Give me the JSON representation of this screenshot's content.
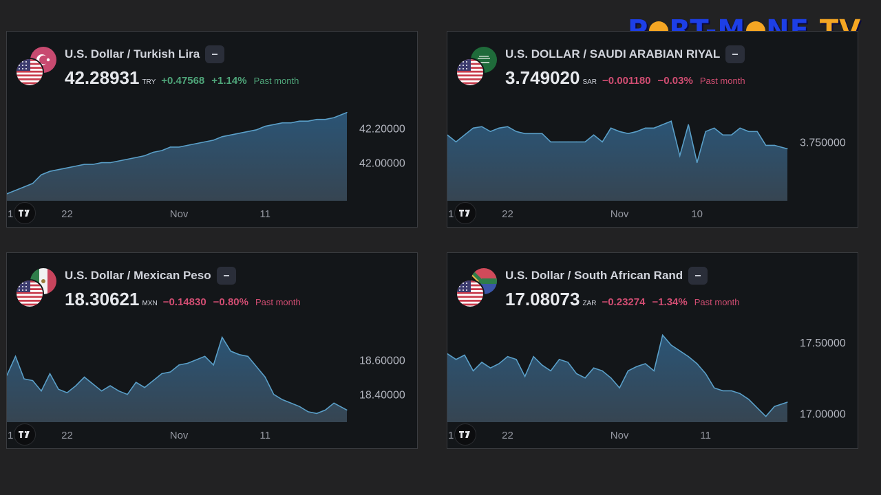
{
  "logo": {
    "left": "P",
    "mid1": "RT-M",
    "mid2": "NE",
    "right": "TV"
  },
  "colors": {
    "up": "#4fa67a",
    "down": "#d14d72",
    "line": "#5a9fc8",
    "card_bg": "#131619"
  },
  "icons": {
    "minus": "minus-icon",
    "tradingview": "tradingview-logo-icon"
  },
  "charts": [
    {
      "id": "try",
      "title": "U.S. Dollar / Turkish Lira",
      "price": "42.28931",
      "currency_code": "TRY",
      "change": "+0.47568",
      "change_pct": "+1.14%",
      "period": "Past month",
      "direction": "up",
      "flags": {
        "base": "us",
        "quote": "tr"
      }
    },
    {
      "id": "sar",
      "title": "U.S. DOLLAR / SAUDI ARABIAN RIYAL",
      "price": "3.749020",
      "currency_code": "SAR",
      "change": "−0.001180",
      "change_pct": "−0.03%",
      "period": "Past month",
      "direction": "down",
      "flags": {
        "base": "us",
        "quote": "sa"
      }
    },
    {
      "id": "mxn",
      "title": "U.S. Dollar / Mexican Peso",
      "price": "18.30621",
      "currency_code": "MXN",
      "change": "−0.14830",
      "change_pct": "−0.80%",
      "period": "Past month",
      "direction": "down",
      "flags": {
        "base": "us",
        "quote": "mx"
      }
    },
    {
      "id": "zar",
      "title": "U.S. Dollar / South African Rand",
      "price": "17.08073",
      "currency_code": "ZAR",
      "change": "−0.23274",
      "change_pct": "−1.34%",
      "period": "Past month",
      "direction": "down",
      "flags": {
        "base": "us",
        "quote": "za"
      }
    }
  ],
  "chart_data": [
    {
      "type": "area",
      "title": "U.S. Dollar / Turkish Lira",
      "x_tick_labels": [
        "1",
        "22",
        "Nov",
        "11"
      ],
      "x_tick_positions_day": [
        0,
        7,
        20,
        30
      ],
      "y_tick_labels": [
        "42.20000",
        "42.00000"
      ],
      "y_tick_values": [
        42.2,
        42.0
      ],
      "ylim": [
        41.78,
        42.34
      ],
      "grid": false,
      "series": [
        {
          "x": [
            0,
            1,
            2,
            3,
            4,
            5,
            6,
            7,
            8,
            9,
            10,
            11,
            12,
            13,
            14,
            15,
            16,
            17,
            18,
            19,
            20,
            21,
            22,
            23,
            24,
            25,
            26,
            27,
            28,
            29,
            30,
            31,
            32,
            33,
            34,
            35,
            36,
            37,
            38,
            39.5
          ],
          "values": [
            41.82,
            41.84,
            41.86,
            41.88,
            41.93,
            41.95,
            41.96,
            41.97,
            41.98,
            41.99,
            41.99,
            42.0,
            42.0,
            42.01,
            42.02,
            42.03,
            42.04,
            42.06,
            42.07,
            42.09,
            42.09,
            42.1,
            42.11,
            42.12,
            42.13,
            42.15,
            42.16,
            42.17,
            42.18,
            42.19,
            42.21,
            42.22,
            42.23,
            42.23,
            42.24,
            42.24,
            42.25,
            42.25,
            42.26,
            42.29
          ]
        }
      ]
    },
    {
      "type": "area",
      "title": "U.S. DOLLAR / SAUDI ARABIAN RIYAL",
      "x_tick_labels": [
        "1",
        "22",
        "Nov",
        "10"
      ],
      "x_tick_positions_day": [
        0,
        7,
        20,
        29
      ],
      "y_tick_labels": [
        "3.750000"
      ],
      "y_tick_values": [
        3.75
      ],
      "ylim": [
        3.7415,
        3.7555
      ],
      "grid": false,
      "series": [
        {
          "x": [
            0,
            1,
            2,
            3,
            4,
            5,
            6,
            7,
            8,
            9,
            10,
            11,
            12,
            13,
            14,
            15,
            16,
            17,
            18,
            19,
            20,
            21,
            22,
            23,
            24,
            25,
            26,
            27,
            28,
            29,
            30,
            31,
            32,
            33,
            34,
            35,
            36,
            37,
            38,
            39.5
          ],
          "values": [
            3.751,
            3.75,
            3.751,
            3.752,
            3.7522,
            3.7515,
            3.752,
            3.7522,
            3.7515,
            3.7512,
            3.7512,
            3.7512,
            3.75,
            3.75,
            3.75,
            3.75,
            3.75,
            3.751,
            3.75,
            3.752,
            3.7515,
            3.7512,
            3.7515,
            3.752,
            3.752,
            3.7525,
            3.753,
            3.748,
            3.7525,
            3.747,
            3.7515,
            3.752,
            3.751,
            3.751,
            3.752,
            3.7515,
            3.7515,
            3.7495,
            3.7495,
            3.749
          ]
        }
      ]
    },
    {
      "type": "area",
      "title": "U.S. Dollar / Mexican Peso",
      "x_tick_labels": [
        "1",
        "22",
        "Nov",
        "11"
      ],
      "x_tick_positions_day": [
        0,
        7,
        20,
        30
      ],
      "y_tick_labels": [
        "18.60000",
        "18.40000"
      ],
      "y_tick_values": [
        18.6,
        18.4
      ],
      "ylim": [
        18.24,
        18.8
      ],
      "grid": false,
      "series": [
        {
          "x": [
            0,
            1,
            2,
            3,
            4,
            5,
            6,
            7,
            8,
            9,
            10,
            11,
            12,
            13,
            14,
            15,
            16,
            17,
            18,
            19,
            20,
            21,
            22,
            23,
            24,
            25,
            26,
            27,
            28,
            29,
            30,
            31,
            32,
            33,
            34,
            35,
            36,
            37,
            38,
            39.5
          ],
          "values": [
            18.51,
            18.62,
            18.49,
            18.48,
            18.42,
            18.52,
            18.43,
            18.41,
            18.45,
            18.5,
            18.46,
            18.42,
            18.45,
            18.42,
            18.4,
            18.47,
            18.44,
            18.48,
            18.52,
            18.53,
            18.57,
            18.58,
            18.6,
            18.62,
            18.57,
            18.73,
            18.65,
            18.63,
            18.62,
            18.56,
            18.5,
            18.4,
            18.37,
            18.35,
            18.33,
            18.3,
            18.29,
            18.31,
            18.35,
            18.31
          ]
        }
      ]
    },
    {
      "type": "area",
      "title": "U.S. Dollar / South African Rand",
      "x_tick_labels": [
        "1",
        "22",
        "Nov",
        "11"
      ],
      "x_tick_positions_day": [
        0,
        7,
        20,
        30
      ],
      "y_tick_labels": [
        "17.50000",
        "17.00000"
      ],
      "y_tick_values": [
        17.5,
        17.0
      ],
      "ylim": [
        16.94,
        17.62
      ],
      "grid": false,
      "series": [
        {
          "x": [
            0,
            1,
            2,
            3,
            4,
            5,
            6,
            7,
            8,
            9,
            10,
            11,
            12,
            13,
            14,
            15,
            16,
            17,
            18,
            19,
            20,
            21,
            22,
            23,
            24,
            25,
            26,
            27,
            28,
            29,
            30,
            31,
            32,
            33,
            34,
            35,
            36,
            37,
            38,
            39.5
          ],
          "values": [
            17.42,
            17.38,
            17.41,
            17.3,
            17.36,
            17.32,
            17.35,
            17.4,
            17.38,
            17.26,
            17.4,
            17.34,
            17.3,
            17.38,
            17.36,
            17.28,
            17.25,
            17.32,
            17.3,
            17.25,
            17.18,
            17.3,
            17.33,
            17.35,
            17.3,
            17.55,
            17.48,
            17.44,
            17.4,
            17.35,
            17.28,
            17.18,
            17.16,
            17.16,
            17.14,
            17.1,
            17.04,
            16.98,
            17.05,
            17.08
          ]
        }
      ]
    }
  ]
}
